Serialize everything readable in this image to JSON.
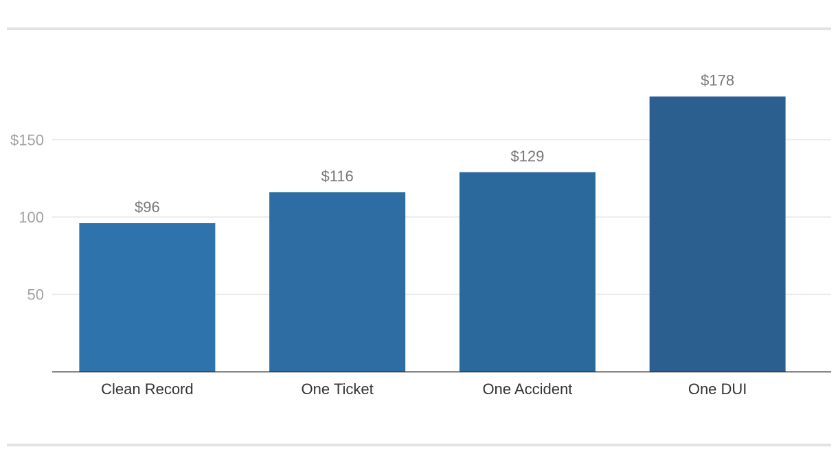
{
  "chart_data": {
    "type": "bar",
    "categories": [
      "Clean Record",
      "One Ticket",
      "One Accident",
      "One DUI"
    ],
    "values": [
      96,
      116,
      129,
      178
    ],
    "data_labels": [
      "$96",
      "$116",
      "$129",
      "$178"
    ],
    "y_ticks": [
      {
        "value": 50,
        "label": "50"
      },
      {
        "value": 100,
        "label": "100"
      },
      {
        "value": 150,
        "label": "$150"
      }
    ],
    "ylim": [
      0,
      200
    ],
    "grid": true,
    "legend": "none",
    "colors": {
      "bars": [
        "#2e73ab",
        "#2d6da3",
        "#2b689c",
        "#2a5f8f"
      ],
      "gridline": "#e6e6e6",
      "axis": "#333333"
    }
  }
}
